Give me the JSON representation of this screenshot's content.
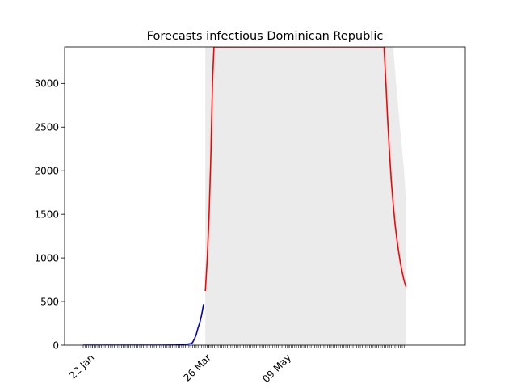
{
  "chart_data": {
    "type": "line",
    "title": "Forecasts infectious Dominican Republic",
    "xlabel": "",
    "ylabel": "",
    "x_start": "2020-01-17",
    "ylim": [
      0,
      3420
    ],
    "y_ticks": [
      0,
      500,
      1000,
      1500,
      2000,
      2500,
      3000
    ],
    "x_tick_labels": [
      {
        "date": "2020-01-22",
        "label": "22 Jan"
      },
      {
        "date": "2020-03-26",
        "label": "26 Mar"
      },
      {
        "date": "2020-05-09",
        "label": "09 May"
      }
    ],
    "colors": {
      "observed": "#0000cc",
      "forecast": "#ff0000",
      "interval": "#ebebeb"
    },
    "series": [
      {
        "role": "observed",
        "points": [
          [
            "2020-01-17",
            0
          ],
          [
            "2020-02-10",
            0
          ],
          [
            "2020-02-29",
            0
          ],
          [
            "2020-03-05",
            1
          ],
          [
            "2020-03-08",
            2
          ],
          [
            "2020-03-10",
            5
          ],
          [
            "2020-03-12",
            8
          ],
          [
            "2020-03-14",
            11
          ],
          [
            "2020-03-16",
            18
          ],
          [
            "2020-03-17",
            30
          ],
          [
            "2020-03-18",
            70
          ],
          [
            "2020-03-19",
            120
          ],
          [
            "2020-03-20",
            200
          ],
          [
            "2020-03-21",
            260
          ],
          [
            "2020-03-22",
            350
          ],
          [
            "2020-03-23",
            470
          ]
        ]
      },
      {
        "role": "forecast",
        "points": [
          [
            "2020-03-24",
            620
          ],
          [
            "2020-03-25",
            980
          ],
          [
            "2020-03-26",
            1450
          ],
          [
            "2020-03-27",
            2150
          ],
          [
            "2020-03-28",
            3050
          ],
          [
            "2020-03-28T18:00",
            3420
          ],
          [
            "2020-06-30",
            3420
          ],
          [
            "2020-07-01",
            3000
          ],
          [
            "2020-07-02",
            2580
          ],
          [
            "2020-07-03",
            2200
          ],
          [
            "2020-07-04",
            1880
          ],
          [
            "2020-07-05",
            1620
          ],
          [
            "2020-07-06",
            1400
          ],
          [
            "2020-07-07",
            1220
          ],
          [
            "2020-07-08",
            1070
          ],
          [
            "2020-07-09",
            940
          ],
          [
            "2020-07-10",
            830
          ],
          [
            "2020-07-11",
            740
          ],
          [
            "2020-07-12",
            670
          ]
        ]
      },
      {
        "role": "interval",
        "upper": [
          [
            "2020-03-24",
            3420
          ],
          [
            "2020-07-05",
            3420
          ],
          [
            "2020-07-07",
            2900
          ],
          [
            "2020-07-09",
            2450
          ],
          [
            "2020-07-11",
            2000
          ],
          [
            "2020-07-12",
            1650
          ]
        ],
        "lower": [
          [
            "2020-03-24",
            0
          ],
          [
            "2020-07-12",
            0
          ]
        ]
      }
    ]
  }
}
